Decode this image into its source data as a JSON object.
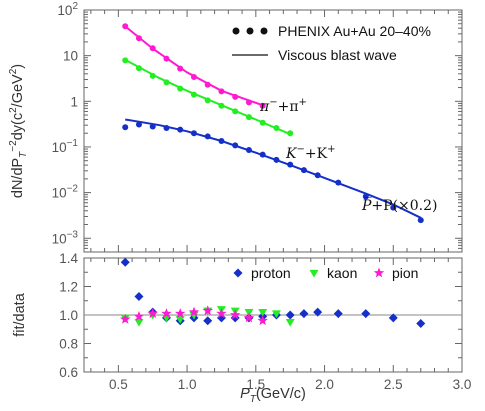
{
  "chart_data": [
    {
      "type": "scatter",
      "name": "spectra",
      "ylabel_parts": {
        "base": "dN/dP",
        "sub1": "T",
        "sup1": "−2",
        "mid": "dy(c",
        "sup2": "2",
        "tail": "/GeV",
        "sup3": "2",
        "end": ")"
      },
      "y_scale": "log",
      "ylim": [
        0.0005,
        100
      ],
      "xlim": [
        0.25,
        3.0
      ],
      "ytick_labels": [
        {
          "mant": "10",
          "exp": "−3",
          "value": 0.001
        },
        {
          "mant": "10",
          "exp": "−2",
          "value": 0.01
        },
        {
          "mant": "10",
          "exp": "−1",
          "value": 0.1
        },
        {
          "mant": "1",
          "exp": "",
          "value": 1
        },
        {
          "mant": "10",
          "exp": "",
          "value": 10
        },
        {
          "mant": "10",
          "exp": "2",
          "value": 100
        }
      ],
      "legend": {
        "data_label": "PHENIX Au+Au 20–40%",
        "model_label": "Viscous blast wave",
        "position": "top-right"
      },
      "series": [
        {
          "name": "pion",
          "label_parts": [
            "π",
            "−",
            "+π",
            "+",
            ""
          ],
          "color": "#ff19d2",
          "x": [
            0.55,
            0.65,
            0.75,
            0.85,
            0.95,
            1.05,
            1.15,
            1.25,
            1.35,
            1.45,
            1.55
          ],
          "y": [
            44,
            24,
            14.5,
            8.6,
            5.2,
            3.4,
            2.3,
            1.65,
            1.25,
            0.95,
            0.8
          ],
          "fit": [
            [
              0.55,
              44
            ],
            [
              0.75,
              14.3
            ],
            [
              1.0,
              4.3
            ],
            [
              1.25,
              1.7
            ],
            [
              1.55,
              0.82
            ]
          ]
        },
        {
          "name": "kaon",
          "label_parts": [
            "K",
            "−",
            "+K",
            "+",
            ""
          ],
          "color": "#22ee22",
          "x": [
            0.55,
            0.65,
            0.75,
            0.85,
            0.95,
            1.05,
            1.15,
            1.25,
            1.35,
            1.45,
            1.55,
            1.65,
            1.75
          ],
          "y": [
            7.9,
            5.3,
            3.6,
            2.6,
            1.9,
            1.4,
            1.05,
            0.8,
            0.6,
            0.45,
            0.34,
            0.26,
            0.2
          ],
          "fit": [
            [
              0.55,
              8.1
            ],
            [
              0.8,
              3.2
            ],
            [
              1.0,
              1.7
            ],
            [
              1.25,
              0.82
            ],
            [
              1.5,
              0.4
            ],
            [
              1.75,
              0.19
            ]
          ]
        },
        {
          "name": "proton",
          "label_parts": [
            "P̅",
            "",
            "+P(×0.2)",
            "",
            ""
          ],
          "color": "#1530c8",
          "x": [
            0.55,
            0.65,
            0.75,
            0.85,
            0.95,
            1.05,
            1.15,
            1.25,
            1.35,
            1.45,
            1.55,
            1.65,
            1.75,
            1.85,
            1.95,
            2.1,
            2.3,
            2.5,
            2.7
          ],
          "y": [
            0.27,
            0.31,
            0.28,
            0.26,
            0.24,
            0.2,
            0.17,
            0.135,
            0.108,
            0.086,
            0.068,
            0.052,
            0.041,
            0.031,
            0.024,
            0.0165,
            0.0082,
            0.0047,
            0.0025
          ],
          "fit": [
            [
              0.55,
              0.4
            ],
            [
              0.8,
              0.3
            ],
            [
              1.0,
              0.22
            ],
            [
              1.25,
              0.135
            ],
            [
              1.5,
              0.075
            ],
            [
              1.75,
              0.04
            ],
            [
              2.0,
              0.021
            ],
            [
              2.3,
              0.0095
            ],
            [
              2.5,
              0.0055
            ],
            [
              2.7,
              0.0028
            ]
          ]
        }
      ]
    },
    {
      "type": "scatter",
      "name": "ratio",
      "ylabel": "fit/data",
      "xlabel_base": "P",
      "xlabel_sub": "T",
      "xlabel_tail": "(GeV/c)",
      "ylim": [
        0.6,
        1.4
      ],
      "xlim": [
        0.25,
        3.0
      ],
      "yticks": [
        "0.6",
        "0.8",
        "1.0",
        "1.2",
        "1.4"
      ],
      "xticks": [
        "0.5",
        "1.0",
        "1.5",
        "2.0",
        "2.5",
        "3.0"
      ],
      "reference_line": 1.0,
      "legend_position": "top-right",
      "series": [
        {
          "name": "proton",
          "marker": "diamond",
          "color": "#1530c8",
          "x": [
            0.55,
            0.65,
            0.75,
            0.85,
            0.95,
            1.05,
            1.15,
            1.25,
            1.35,
            1.45,
            1.55,
            1.65,
            1.75,
            1.85,
            1.95,
            2.1,
            2.3,
            2.5,
            2.7
          ],
          "y": [
            1.37,
            1.13,
            1.02,
            0.98,
            0.96,
            0.98,
            0.96,
            0.98,
            0.98,
            0.98,
            0.99,
            1.0,
            1.0,
            1.01,
            1.02,
            1.01,
            1.01,
            0.98,
            0.94
          ]
        },
        {
          "name": "kaon",
          "marker": "triangle",
          "color": "#22ee22",
          "x": [
            0.55,
            0.65,
            0.75,
            0.85,
            0.95,
            1.05,
            1.15,
            1.25,
            1.35,
            1.45,
            1.55,
            1.65,
            1.75
          ],
          "y": [
            0.98,
            0.95,
            1.0,
            0.98,
            0.97,
            1.0,
            1.03,
            1.04,
            1.03,
            1.02,
            1.02,
            1.01,
            0.95
          ]
        },
        {
          "name": "pion",
          "marker": "star",
          "color": "#ff19d2",
          "x": [
            0.55,
            0.65,
            0.75,
            0.85,
            0.95,
            1.05,
            1.15,
            1.25,
            1.35,
            1.45,
            1.55
          ],
          "y": [
            0.97,
            0.99,
            1.01,
            1.01,
            1.01,
            1.02,
            1.03,
            1.01,
            1.0,
            0.98,
            0.96
          ]
        }
      ]
    }
  ]
}
